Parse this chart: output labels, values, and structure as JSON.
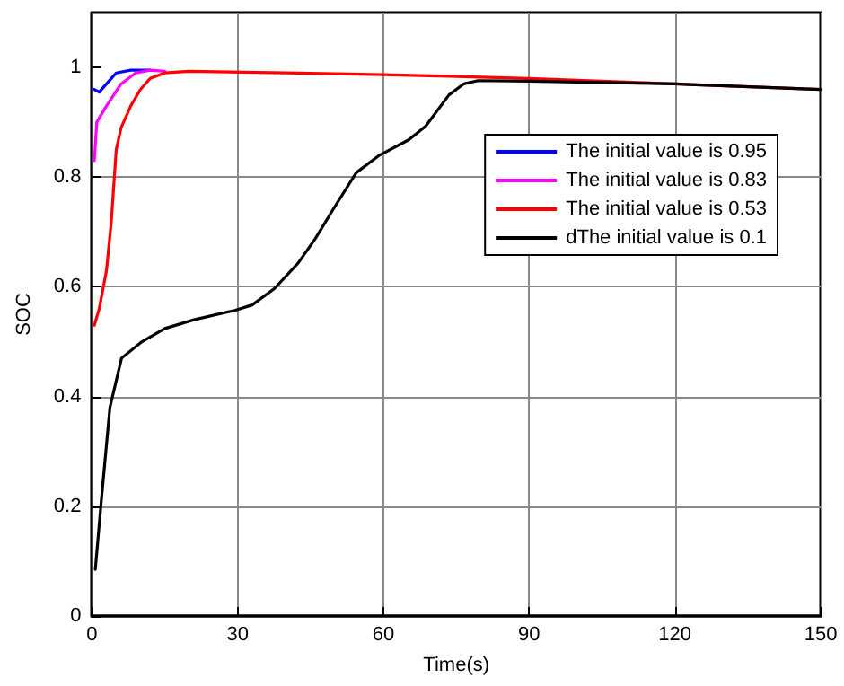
{
  "chart_data": {
    "type": "line",
    "xlabel": "Time(s)",
    "ylabel": "SOC",
    "xlim": [
      0,
      150
    ],
    "xticks": [
      0,
      30,
      60,
      90,
      120,
      150
    ],
    "ylim": [
      0,
      1.1
    ],
    "yticks": [
      0,
      0.2,
      0.4,
      0.6,
      0.8,
      1
    ],
    "grid": true,
    "legend": "top right",
    "line_style": "solid",
    "marker": "none",
    "series": [
      {
        "name": "The initial value is 0.95",
        "color": "#0000ff",
        "x": [
          0.5,
          1.5,
          3,
          5,
          8,
          12
        ],
        "values": [
          0.96,
          0.955,
          0.97,
          0.99,
          0.995,
          0.995
        ]
      },
      {
        "name": "The initial value is 0.83",
        "color": "#ff00ff",
        "x": [
          0.5,
          1,
          3,
          6,
          9,
          12,
          15
        ],
        "values": [
          0.83,
          0.9,
          0.93,
          0.97,
          0.99,
          0.995,
          0.993
        ]
      },
      {
        "name": "The initial value is 0.53",
        "color": "#ff0000",
        "x": [
          0.5,
          1.5,
          3,
          4,
          5,
          6,
          8,
          10,
          12,
          15,
          20,
          40,
          60,
          90,
          120,
          150
        ],
        "values": [
          0.53,
          0.56,
          0.63,
          0.72,
          0.85,
          0.89,
          0.93,
          0.96,
          0.98,
          0.99,
          0.993,
          0.99,
          0.987,
          0.98,
          0.97,
          0.96
        ]
      },
      {
        "name": "dThe initial value is 0.1",
        "color": "#000000",
        "x": [
          0.7,
          1.9,
          3.7,
          6.1,
          10.3,
          15,
          21,
          29.4,
          33,
          37.6,
          42.5,
          46,
          49.7,
          54.4,
          59.2,
          65.2,
          68.7,
          73.5,
          76.5,
          79.5,
          90,
          120,
          150
        ],
        "values": [
          0.085,
          0.207,
          0.38,
          0.47,
          0.5,
          0.524,
          0.54,
          0.557,
          0.567,
          0.597,
          0.644,
          0.688,
          0.742,
          0.808,
          0.84,
          0.868,
          0.893,
          0.95,
          0.97,
          0.976,
          0.975,
          0.97,
          0.96
        ]
      }
    ]
  }
}
